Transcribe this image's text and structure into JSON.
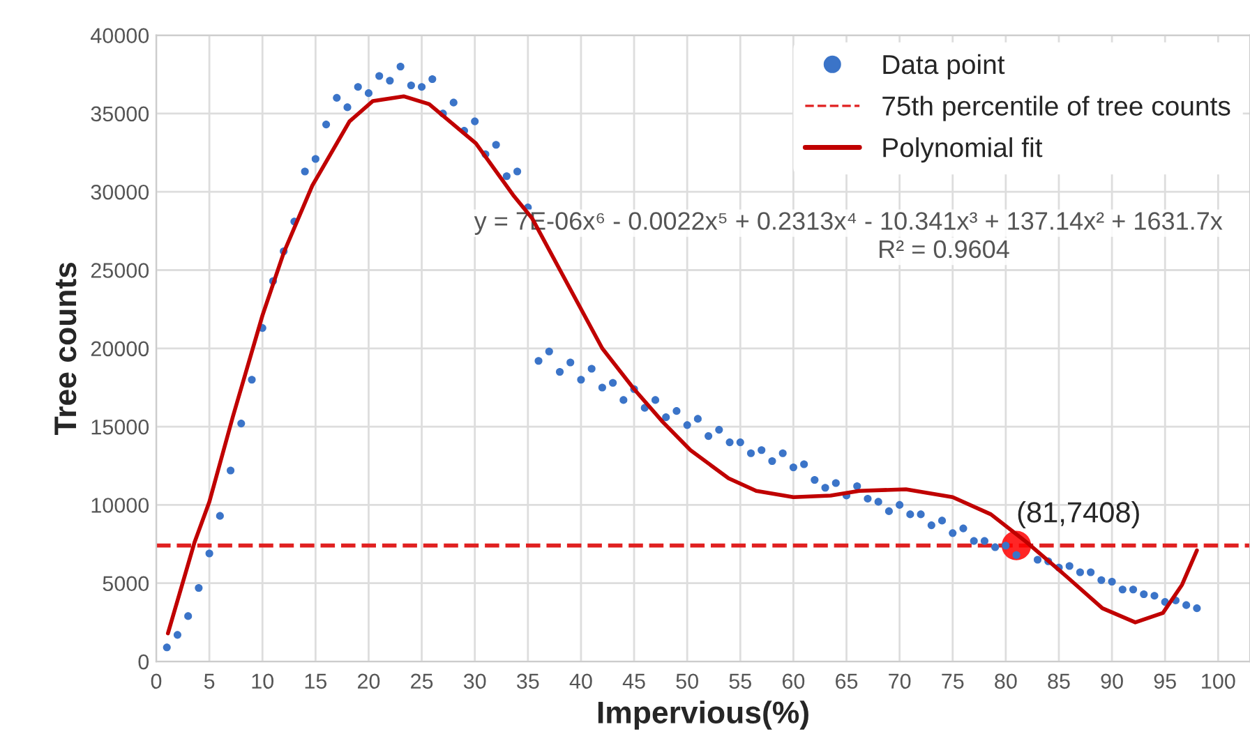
{
  "chart_data": {
    "type": "scatter",
    "xlabel": "Impervious(%)",
    "ylabel": "Tree counts",
    "xlim": [
      0,
      103
    ],
    "ylim": [
      0,
      40000
    ],
    "xticks": [
      0,
      5,
      10,
      15,
      20,
      25,
      30,
      35,
      40,
      45,
      50,
      55,
      60,
      65,
      70,
      75,
      80,
      85,
      90,
      95,
      100
    ],
    "yticks": [
      0,
      5000,
      10000,
      15000,
      20000,
      25000,
      30000,
      35000,
      40000
    ],
    "grid": true,
    "legend": "top right",
    "series": [
      {
        "name": "Data point",
        "marker": "circle",
        "color": "#3b74c8",
        "x": [
          1,
          2,
          3,
          4,
          5,
          6,
          7,
          8,
          9,
          10,
          11,
          12,
          13,
          14,
          15,
          16,
          17,
          18,
          19,
          20,
          21,
          22,
          23,
          24,
          25,
          26,
          27,
          28,
          29,
          30,
          31,
          32,
          33,
          34,
          35,
          36,
          37,
          38,
          39,
          40,
          41,
          42,
          43,
          44,
          45,
          46,
          47,
          48,
          49,
          50,
          51,
          52,
          53,
          54,
          55,
          56,
          57,
          58,
          59,
          60,
          61,
          62,
          63,
          64,
          65,
          66,
          67,
          68,
          69,
          70,
          71,
          72,
          73,
          74,
          75,
          76,
          77,
          78,
          79,
          80,
          81,
          82,
          83,
          84,
          85,
          86,
          87,
          88,
          89,
          90,
          91,
          92,
          93,
          94,
          95,
          96,
          97,
          98
        ],
        "values": [
          900,
          1700,
          2900,
          4700,
          6900,
          9300,
          12200,
          15200,
          18000,
          21300,
          24300,
          26200,
          28100,
          31300,
          32100,
          34300,
          36000,
          35400,
          36700,
          36300,
          37400,
          37100,
          38000,
          36800,
          36700,
          37200,
          35000,
          35700,
          33900,
          34500,
          32400,
          33000,
          31000,
          31300,
          29000,
          19200,
          19800,
          18500,
          19100,
          18000,
          18700,
          17500,
          17800,
          16700,
          17400,
          16200,
          16700,
          15600,
          16000,
          15100,
          15500,
          14400,
          14800,
          14000,
          14000,
          13300,
          13500,
          12800,
          13300,
          12400,
          12600,
          11600,
          11100,
          11400,
          10600,
          11200,
          10400,
          10200,
          9600,
          10000,
          9400,
          9400,
          8700,
          9000,
          8200,
          8500,
          7700,
          7700,
          7300,
          7400,
          6800,
          null,
          6500,
          6400,
          6000,
          6100,
          5700,
          5700,
          5200,
          5100,
          4600,
          4600,
          4300,
          4200,
          3800,
          3900,
          3600,
          3400
        ]
      },
      {
        "name": "Polynomial fit",
        "type": "line",
        "marker": "none",
        "line_style": "solid",
        "color": "#c00000",
        "x": [
          1.1,
          3.6,
          5,
          7.2,
          10,
          12,
          14.7,
          18.2,
          20.4,
          23.3,
          25.7,
          30.1,
          33.6,
          35.4,
          38.9,
          42,
          45,
          47.7,
          50.3,
          53.9,
          56.5,
          60,
          63.5,
          66.2,
          70.6,
          75,
          78.6,
          82,
          85.6,
          89.1,
          92.2,
          94.8,
          96.6,
          98
        ],
        "values": [
          1800,
          7600,
          10200,
          15600,
          22100,
          26100,
          30400,
          34500,
          35800,
          36100,
          35600,
          33100,
          29800,
          28300,
          23900,
          20000,
          17400,
          15300,
          13500,
          11700,
          10900,
          10500,
          10600,
          10900,
          11000,
          10500,
          9400,
          7600,
          5500,
          3400,
          2500,
          3100,
          4900,
          7100
        ]
      }
    ],
    "ref_lines": [
      {
        "axis": "y",
        "value": 7408,
        "label": "75th percentile of tree counts",
        "color": "#e02020",
        "line_style": "dashed"
      }
    ],
    "annotations": [
      {
        "text": "(81,7408)",
        "x": 81,
        "y": 7408
      },
      "y = 7E-06x⁶ - 0.0022x⁵ + 0.2313x⁴ - 10.341x³ + 137.14x² + 1631.7x",
      "R² = 0.9604"
    ]
  }
}
